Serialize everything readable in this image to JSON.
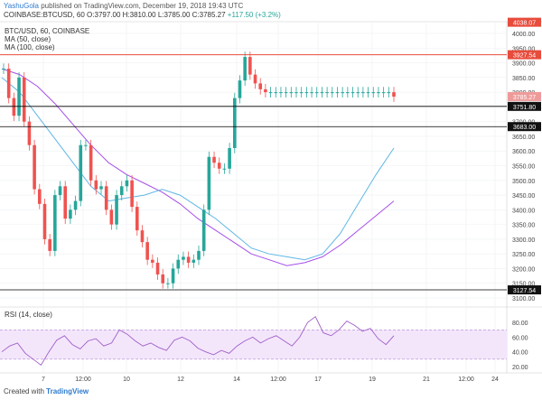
{
  "header": {
    "author": "YashuGola",
    "published_text": "published on TradingView.com, December 19, 2018 19:43 UTC"
  },
  "symbol_line": {
    "symbol": "COINBASE:BTCUSD, 60",
    "o": "O:3797.00",
    "h": "H:3810.00",
    "l": "L:3785.00",
    "c": "C:3785.27",
    "last": "3785.27",
    "change": "+117.50 (+3.2%)"
  },
  "legend": {
    "title": "BTC/USD, 60, COINBASE",
    "ma50": "MA (50, close)",
    "ma100": "MA (100, close)"
  },
  "rsi_label": "RSI (14, close)",
  "footer": {
    "created_with": "Created with",
    "brand": "TradingView"
  },
  "colors": {
    "up": "#26a69a",
    "down": "#ef5350",
    "ma50": "#5fb7e5",
    "ma100": "#a64fe8",
    "rsi_line": "#a05fc8",
    "rsi_band": "#f3e6fb",
    "resistance": "#e74c3c",
    "support": "#000000",
    "current_price": "#e57373"
  },
  "chart_data": {
    "type": "line",
    "title": "BTC/USD, 60, COINBASE",
    "ylim": [
      3100,
      4040
    ],
    "x_ticks": [
      "7",
      "12:00",
      "10",
      "12",
      "14",
      "12:00",
      "17",
      "19",
      "21",
      "12:00",
      "24"
    ],
    "y_ticks": [
      3100,
      3150,
      3200,
      3250,
      3300,
      3350,
      3400,
      3450,
      3500,
      3550,
      3600,
      3650,
      3700,
      3750,
      3800,
      3850,
      3900,
      3950,
      4000
    ],
    "price_labels": [
      "4038.07",
      "3927.54",
      "3785.27",
      "3751.80",
      "3683.00",
      "3127.54"
    ],
    "series": [
      {
        "name": "BTC/USD",
        "x": [
          0,
          3,
          6,
          9,
          12,
          15,
          18,
          21,
          24,
          27,
          30,
          33,
          36,
          39,
          42,
          45,
          48,
          51,
          54,
          57,
          60,
          63,
          66,
          69,
          72,
          75,
          78,
          81,
          84,
          87,
          90,
          93,
          96,
          99,
          102,
          105,
          108,
          111,
          114,
          117,
          120,
          123,
          126,
          129,
          132,
          135,
          138,
          141,
          144,
          147,
          150,
          153,
          156,
          159,
          162,
          165,
          168,
          171,
          174,
          177,
          180,
          183,
          186,
          189,
          192,
          195,
          198,
          201,
          204,
          207,
          210,
          213,
          216,
          219,
          222,
          225,
          228
        ],
        "values": [
          3880,
          3780,
          3720,
          3850,
          3700,
          3620,
          3470,
          3420,
          3300,
          3260,
          3450,
          3480,
          3370,
          3400,
          3430,
          3620,
          3620,
          3500,
          3470,
          3480,
          3400,
          3350,
          3450,
          3480,
          3500,
          3410,
          3330,
          3290,
          3230,
          3220,
          3180,
          3150,
          3150,
          3200,
          3230,
          3240,
          3220,
          3230,
          3260,
          3400,
          3580,
          3560,
          3540,
          3540,
          3610,
          3780,
          3840,
          3920,
          3860,
          3830,
          3810,
          3800,
          3800,
          3800,
          3800,
          3800,
          3800,
          3800,
          3800,
          3800,
          3800,
          3800,
          3800,
          3800,
          3800,
          3800,
          3800,
          3800,
          3800,
          3800,
          3800,
          3800,
          3800,
          3800,
          3800,
          3800,
          3785
        ]
      },
      {
        "name": "MA (50, close)",
        "values": [
          3850,
          3800,
          3720,
          3640,
          3560,
          3480,
          3430,
          3440,
          3450,
          3470,
          3450,
          3410,
          3370,
          3320,
          3270,
          3250,
          3240,
          3230,
          3250,
          3320,
          3420,
          3520,
          3610
        ]
      },
      {
        "name": "MA (100, close)",
        "values": [
          3880,
          3860,
          3820,
          3760,
          3690,
          3620,
          3560,
          3520,
          3490,
          3460,
          3420,
          3370,
          3330,
          3290,
          3250,
          3230,
          3210,
          3220,
          3240,
          3280,
          3330,
          3380,
          3430
        ]
      }
    ],
    "horizontal_levels": [
      {
        "label": "3927.54",
        "value": 3927.54
      },
      {
        "label": "3751.80",
        "value": 3751.8
      },
      {
        "label": "3683.00",
        "value": 3683.0
      },
      {
        "label": "3127.54",
        "value": 3127.54
      }
    ],
    "rsi": {
      "name": "RSI (14, close)",
      "ylim": [
        15,
        95
      ],
      "band": [
        30,
        70
      ],
      "y_ticks": [
        20,
        40,
        60,
        80
      ],
      "values": [
        40,
        48,
        52,
        38,
        30,
        22,
        40,
        56,
        62,
        50,
        44,
        55,
        58,
        48,
        52,
        70,
        64,
        55,
        48,
        52,
        46,
        42,
        56,
        60,
        55,
        45,
        40,
        36,
        42,
        38,
        48,
        55,
        60,
        52,
        58,
        62,
        55,
        48,
        60,
        80,
        88,
        66,
        62,
        70,
        82,
        76,
        68,
        72,
        58,
        50,
        62
      ]
    }
  }
}
